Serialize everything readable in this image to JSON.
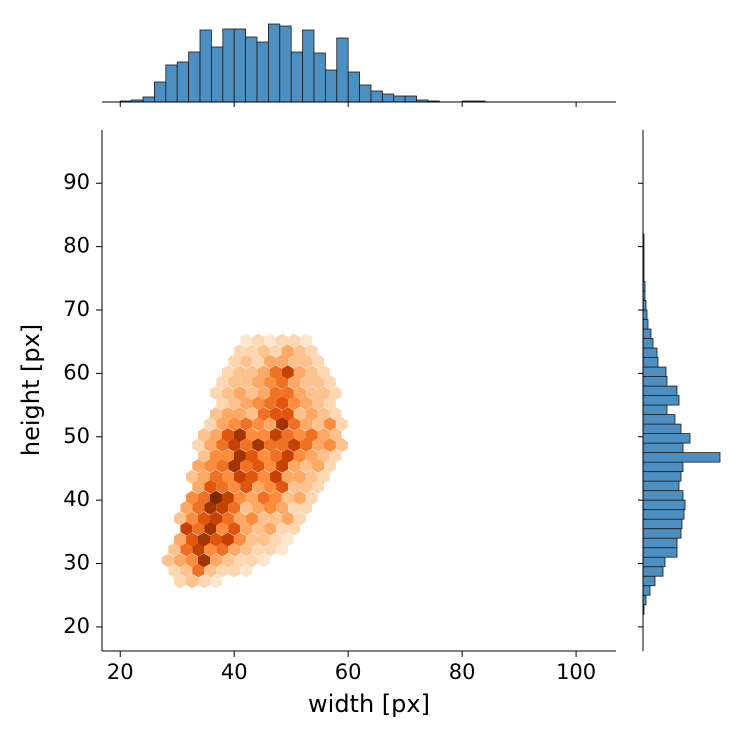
{
  "chart_data": [
    {
      "type": "hexbin",
      "xlabel": "width [px]",
      "ylabel": "height [px]",
      "xlim": [
        16.8,
        107
      ],
      "ylim": [
        16.2,
        98.4
      ],
      "xticks": [
        20,
        40,
        60,
        80,
        100
      ],
      "yticks": [
        20,
        30,
        40,
        50,
        60,
        70,
        80,
        90
      ],
      "clim": [
        0,
        10
      ],
      "colors": [
        "#fff5eb",
        "#fdd0a2",
        "#fd8d3c",
        "#d94801",
        "#7f2704"
      ],
      "rows": [
        {
          "y": 27.2,
          "x": [
            30.5,
            32.6,
            34.7,
            36.8
          ],
          "counts": [
            2,
            3,
            2,
            1
          ]
        },
        {
          "y": 28.9,
          "x": [
            29.5,
            31.6,
            33.7,
            35.8,
            37.9,
            40.0,
            42.1
          ],
          "counts": [
            2,
            3,
            6,
            3,
            2,
            2,
            1
          ]
        },
        {
          "y": 30.5,
          "x": [
            28.4,
            30.5,
            32.6,
            34.7,
            36.8,
            38.9,
            41.0,
            43.1,
            45.2
          ],
          "counts": [
            3,
            4,
            5,
            9,
            4,
            3,
            2,
            2,
            1
          ]
        },
        {
          "y": 32.2,
          "x": [
            29.5,
            31.6,
            33.7,
            35.8,
            37.9,
            40.0,
            42.1,
            44.2,
            46.3,
            48.4
          ],
          "counts": [
            3,
            6,
            8,
            5,
            6,
            4,
            3,
            2,
            2,
            1
          ]
        },
        {
          "y": 33.8,
          "x": [
            30.5,
            32.6,
            34.7,
            36.8,
            38.9,
            41.0,
            43.1,
            45.2,
            47.3,
            49.4
          ],
          "counts": [
            4,
            7,
            9,
            7,
            8,
            5,
            3,
            3,
            2,
            1
          ]
        },
        {
          "y": 35.5,
          "x": [
            31.6,
            33.7,
            35.8,
            37.9,
            40.0,
            42.1,
            44.2,
            46.3,
            48.4,
            50.5
          ],
          "counts": [
            8,
            6,
            9,
            5,
            7,
            4,
            3,
            4,
            2,
            2
          ]
        },
        {
          "y": 37.1,
          "x": [
            30.5,
            32.6,
            34.7,
            36.8,
            38.9,
            41.0,
            43.1,
            45.2,
            47.3,
            49.4,
            51.5
          ],
          "counts": [
            3,
            5,
            7,
            8,
            6,
            4,
            5,
            3,
            3,
            4,
            2
          ]
        },
        {
          "y": 38.8,
          "x": [
            31.6,
            33.7,
            35.8,
            37.9,
            40.0,
            42.1,
            44.2,
            46.3,
            48.4,
            50.5,
            52.6
          ],
          "counts": [
            4,
            6,
            9,
            8,
            6,
            3,
            4,
            5,
            4,
            2,
            2
          ]
        },
        {
          "y": 40.4,
          "x": [
            32.6,
            34.7,
            36.8,
            38.9,
            41.0,
            43.1,
            45.2,
            47.3,
            49.4,
            51.5,
            53.6
          ],
          "counts": [
            5,
            6,
            10,
            8,
            5,
            4,
            6,
            5,
            3,
            4,
            2
          ]
        },
        {
          "y": 42.1,
          "x": [
            33.7,
            35.8,
            37.9,
            40.0,
            42.1,
            44.2,
            46.3,
            48.4,
            50.5,
            52.6,
            54.7
          ],
          "counts": [
            4,
            7,
            6,
            5,
            7,
            4,
            5,
            7,
            3,
            3,
            2
          ]
        },
        {
          "y": 43.7,
          "x": [
            32.6,
            34.7,
            36.8,
            38.9,
            41.0,
            43.1,
            45.2,
            47.3,
            49.4,
            51.5,
            53.6,
            55.7
          ],
          "counts": [
            3,
            4,
            6,
            5,
            8,
            7,
            5,
            8,
            4,
            4,
            3,
            2
          ]
        },
        {
          "y": 45.4,
          "x": [
            33.7,
            35.8,
            37.9,
            40.0,
            42.1,
            44.2,
            46.3,
            48.4,
            50.5,
            52.6,
            54.7,
            56.8
          ],
          "counts": [
            4,
            5,
            6,
            9,
            6,
            7,
            5,
            8,
            4,
            3,
            4,
            2
          ]
        },
        {
          "y": 47.0,
          "x": [
            34.7,
            36.8,
            38.9,
            41.0,
            43.1,
            45.2,
            47.3,
            49.4,
            51.5,
            53.6,
            55.7,
            57.8
          ],
          "counts": [
            3,
            5,
            5,
            9,
            7,
            5,
            6,
            8,
            5,
            4,
            3,
            2
          ]
        },
        {
          "y": 48.7,
          "x": [
            33.7,
            35.8,
            37.9,
            40.0,
            42.1,
            44.2,
            46.3,
            48.4,
            50.5,
            52.6,
            54.7,
            56.8,
            58.9
          ],
          "counts": [
            2,
            4,
            6,
            8,
            6,
            9,
            6,
            6,
            8,
            6,
            4,
            5,
            3
          ]
        },
        {
          "y": 50.3,
          "x": [
            34.7,
            36.8,
            38.9,
            41.0,
            43.1,
            45.2,
            47.3,
            49.4,
            51.5,
            53.6,
            55.7,
            57.8
          ],
          "counts": [
            3,
            4,
            7,
            9,
            5,
            5,
            8,
            6,
            5,
            6,
            4,
            3
          ]
        },
        {
          "y": 52.0,
          "x": [
            35.8,
            37.9,
            40.0,
            42.1,
            44.2,
            46.3,
            48.4,
            50.5,
            52.6,
            54.7,
            56.8,
            58.9
          ],
          "counts": [
            2,
            4,
            5,
            6,
            5,
            4,
            9,
            6,
            4,
            3,
            5,
            2
          ]
        },
        {
          "y": 53.6,
          "x": [
            36.8,
            38.9,
            41.0,
            43.1,
            45.2,
            47.3,
            49.4,
            51.5,
            53.6,
            55.7,
            57.8
          ],
          "counts": [
            3,
            4,
            4,
            3,
            6,
            7,
            7,
            3,
            4,
            3,
            2
          ]
        },
        {
          "y": 55.3,
          "x": [
            37.9,
            40.0,
            42.1,
            44.2,
            46.3,
            48.4,
            50.5,
            52.6,
            54.7,
            56.8
          ],
          "counts": [
            2,
            3,
            4,
            5,
            6,
            7,
            5,
            4,
            3,
            2
          ]
        },
        {
          "y": 56.9,
          "x": [
            36.8,
            38.9,
            41.0,
            43.1,
            45.2,
            47.3,
            49.4,
            51.5,
            53.6,
            55.7,
            57.8
          ],
          "counts": [
            2,
            3,
            4,
            3,
            4,
            6,
            6,
            4,
            3,
            3,
            2
          ]
        },
        {
          "y": 58.6,
          "x": [
            37.9,
            40.0,
            42.1,
            44.2,
            46.3,
            48.4,
            50.5,
            52.6,
            54.7,
            56.8
          ],
          "counts": [
            2,
            3,
            3,
            4,
            5,
            6,
            4,
            3,
            3,
            2
          ]
        },
        {
          "y": 60.2,
          "x": [
            38.9,
            41.0,
            43.1,
            45.2,
            47.3,
            49.4,
            51.5,
            53.6,
            55.7
          ],
          "counts": [
            2,
            3,
            3,
            4,
            6,
            8,
            4,
            3,
            2
          ]
        },
        {
          "y": 61.9,
          "x": [
            40.0,
            42.1,
            44.2,
            46.3,
            48.4,
            50.5,
            52.6,
            54.7
          ],
          "counts": [
            2,
            3,
            2,
            4,
            4,
            3,
            3,
            2
          ]
        },
        {
          "y": 63.5,
          "x": [
            41.0,
            43.1,
            45.2,
            47.3,
            49.4,
            51.5,
            53.6
          ],
          "counts": [
            2,
            2,
            3,
            2,
            4,
            3,
            2
          ]
        },
        {
          "y": 65.2,
          "x": [
            42.1,
            44.2,
            46.3,
            48.4,
            50.5,
            52.6
          ],
          "counts": [
            1,
            2,
            1,
            2,
            2,
            1
          ]
        }
      ]
    },
    {
      "type": "histogram",
      "orientation": "vertical",
      "color": "#4c8fc0",
      "ylim": [
        0,
        80
      ],
      "bins": [
        20,
        22,
        24,
        26,
        28,
        30,
        32,
        34,
        36,
        38,
        40,
        42,
        44,
        46,
        48,
        50,
        52,
        54,
        56,
        58,
        60,
        62,
        64,
        66,
        68,
        70,
        72,
        74,
        76,
        78,
        80,
        82,
        84,
        86,
        88,
        90
      ],
      "counts": [
        1,
        2,
        5,
        20,
        37,
        40,
        50,
        72,
        55,
        73,
        73,
        65,
        60,
        78,
        76,
        50,
        72,
        49,
        32,
        64,
        30,
        17,
        11,
        8,
        6,
        6,
        2,
        1,
        0,
        0,
        1,
        1,
        0,
        0,
        0
      ]
    },
    {
      "type": "histogram",
      "orientation": "horizontal",
      "color": "#4c8fc0",
      "xlim": [
        0,
        80
      ],
      "bins": [
        22,
        23.5,
        25,
        26.5,
        28,
        29.5,
        31,
        32.5,
        34,
        35.5,
        37,
        38.5,
        40,
        41.5,
        43,
        44.5,
        46,
        47.5,
        49,
        50.5,
        52,
        53.5,
        55,
        56.5,
        58,
        59.5,
        61,
        62.5,
        64,
        65.5,
        67,
        68.5,
        70,
        71.5,
        73,
        74.5,
        76,
        77.5,
        79,
        80.5,
        82
      ],
      "counts": [
        1,
        3,
        7,
        12,
        20,
        22,
        34,
        34,
        38,
        39,
        41,
        42,
        40,
        36,
        38,
        40,
        77,
        40,
        47,
        38,
        32,
        24,
        36,
        34,
        24,
        23,
        15,
        14,
        10,
        8,
        5,
        4,
        3,
        2,
        2,
        1,
        1,
        1,
        1,
        1
      ]
    }
  ]
}
